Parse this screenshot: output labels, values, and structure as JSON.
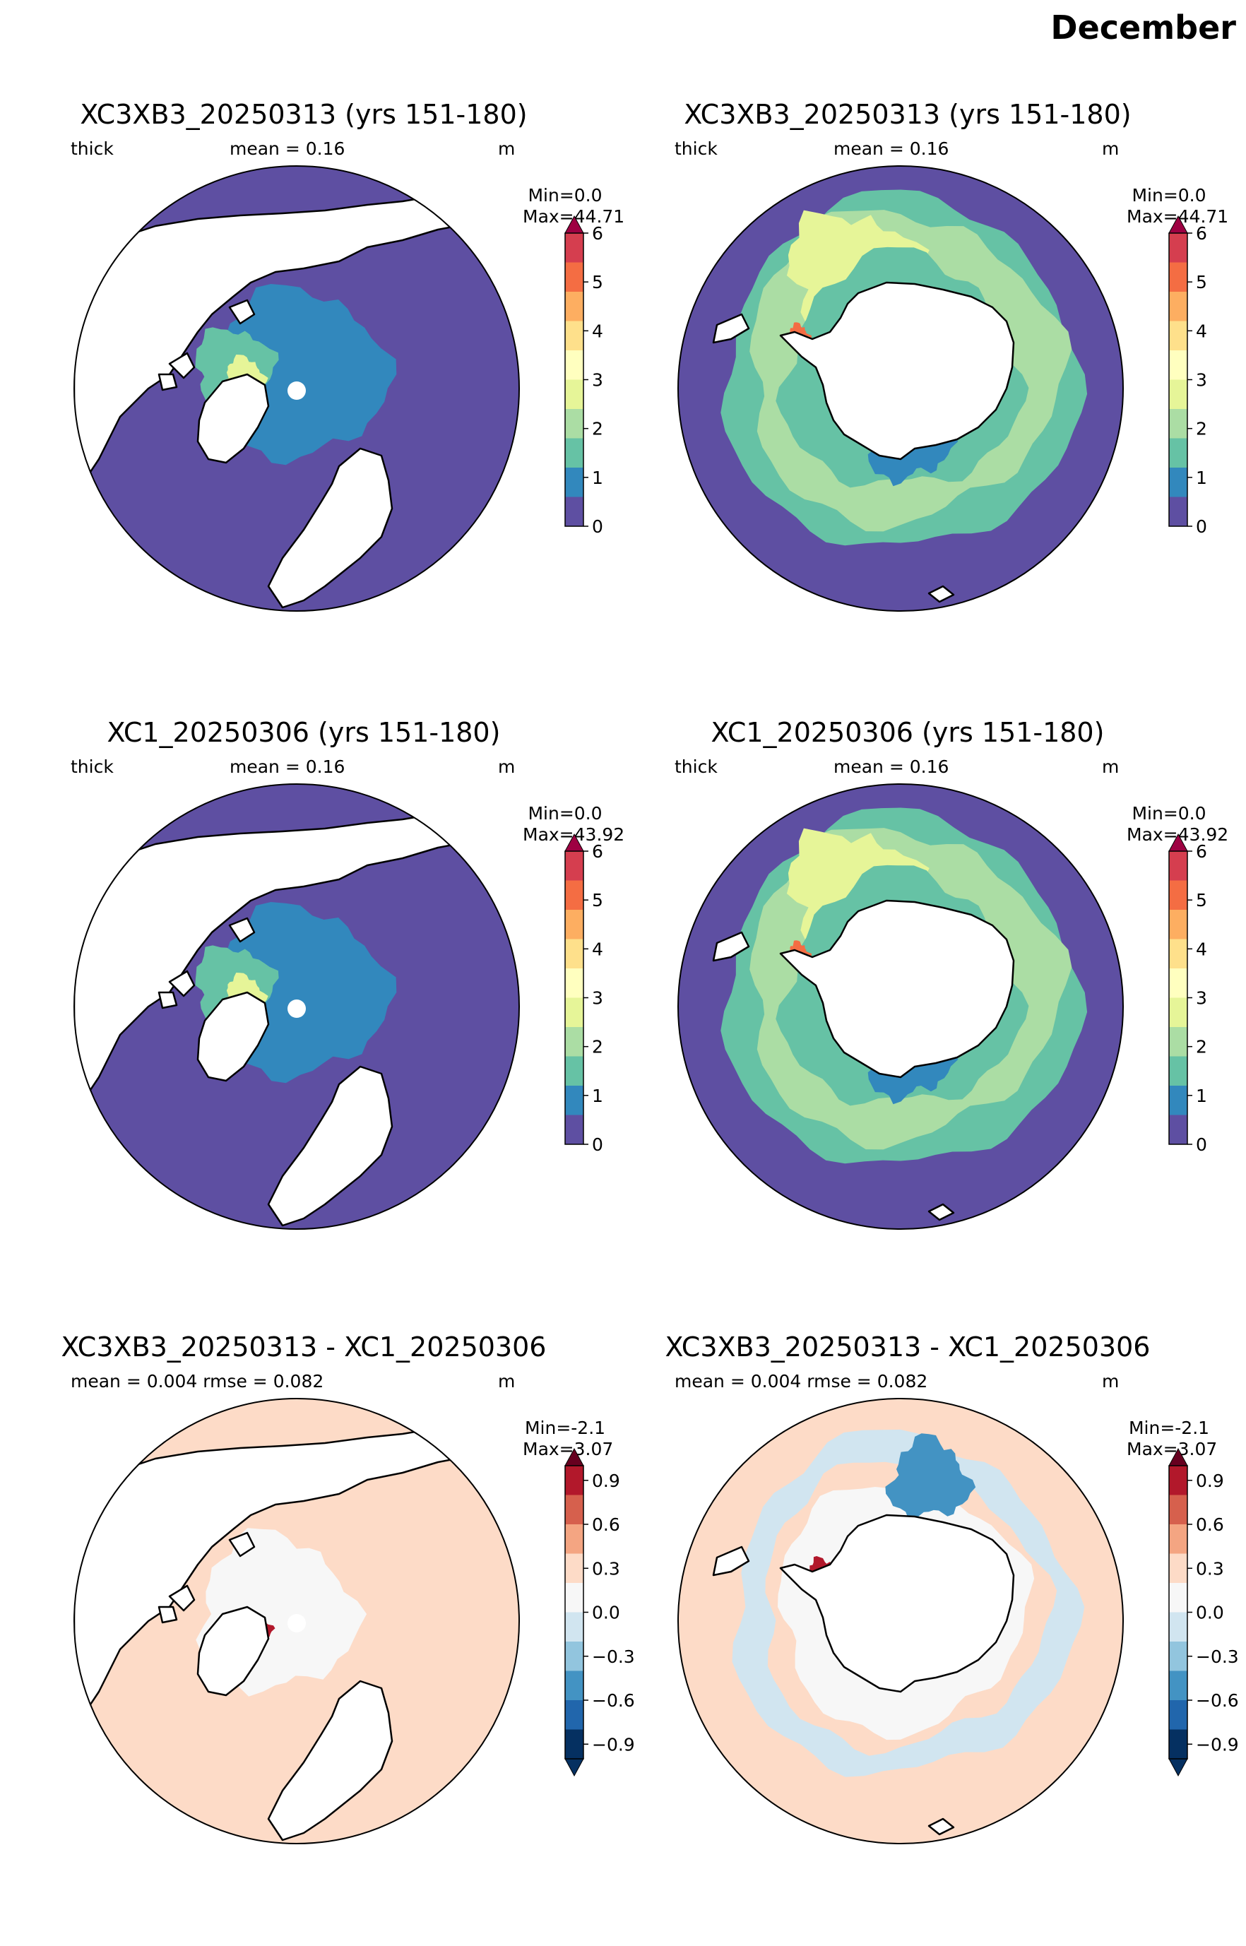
{
  "figure_title": "December",
  "colors": {
    "thick_scale": [
      "#5e4fa2",
      "#3288bd",
      "#66c2a5",
      "#abdda4",
      "#e6f598",
      "#ffffbf",
      "#fee08b",
      "#fdae61",
      "#f46d43",
      "#d53e4f",
      "#9e0142"
    ],
    "diff_scale": [
      "#053061",
      "#2166ac",
      "#4393c3",
      "#92c5de",
      "#d1e5f0",
      "#f7f7f7",
      "#fddbc7",
      "#f4a582",
      "#d6604d",
      "#b2182b",
      "#67001f"
    ],
    "land": "#ffffff",
    "coast": "#000000"
  },
  "panels": [
    {
      "id": "p1",
      "title": "XC3XB3_20250313 (yrs 151-180)",
      "variable": "thick",
      "mean_text": "mean = 0.16",
      "unit": "m",
      "min_text": "Min=0.0",
      "max_text": "Max=44.71",
      "hemisphere": "north",
      "scale": "thick"
    },
    {
      "id": "p2",
      "title": "XC3XB3_20250313 (yrs 151-180)",
      "variable": "thick",
      "mean_text": "mean = 0.16",
      "unit": "m",
      "min_text": "Min=0.0",
      "max_text": "Max=44.71",
      "hemisphere": "south",
      "scale": "thick"
    },
    {
      "id": "p3",
      "title": "XC1_20250306 (yrs 151-180)",
      "variable": "thick",
      "mean_text": "mean = 0.16",
      "unit": "m",
      "min_text": "Min=0.0",
      "max_text": "Max=43.92",
      "hemisphere": "north",
      "scale": "thick"
    },
    {
      "id": "p4",
      "title": "XC1_20250306 (yrs 151-180)",
      "variable": "thick",
      "mean_text": "mean = 0.16",
      "unit": "m",
      "min_text": "Min=0.0",
      "max_text": "Max=43.92",
      "hemisphere": "south",
      "scale": "thick"
    },
    {
      "id": "p5",
      "title": "XC3XB3_20250313 - XC1_20250306",
      "stats_text": "mean = 0.004  rmse = 0.082",
      "unit": "m",
      "min_text": "Min=-2.1",
      "max_text": "Max=3.07",
      "hemisphere": "north",
      "scale": "diff"
    },
    {
      "id": "p6",
      "title": "XC3XB3_20250313 - XC1_20250306",
      "stats_text": "mean = 0.004  rmse = 0.082",
      "unit": "m",
      "min_text": "Min=-2.1",
      "max_text": "Max=3.07",
      "hemisphere": "south",
      "scale": "diff"
    }
  ],
  "chart_data": [
    {
      "type": "heatmap",
      "title": "XC3XB3_20250313 (yrs 151-180)",
      "projection": "north polar stereographic",
      "variable": "thick",
      "units": "m",
      "mean": 0.16,
      "min": 0.0,
      "max": 44.71,
      "colorbar": {
        "ticks": [
          0,
          1,
          2,
          3,
          4,
          5,
          6
        ],
        "tick_labels": [
          "0",
          "1",
          "2",
          "3",
          "4",
          "5",
          "6"
        ],
        "extend": "max"
      }
    },
    {
      "type": "heatmap",
      "title": "XC3XB3_20250313 (yrs 151-180)",
      "projection": "south polar stereographic",
      "variable": "thick",
      "units": "m",
      "mean": 0.16,
      "min": 0.0,
      "max": 44.71,
      "colorbar": {
        "ticks": [
          0,
          1,
          2,
          3,
          4,
          5,
          6
        ],
        "tick_labels": [
          "0",
          "1",
          "2",
          "3",
          "4",
          "5",
          "6"
        ],
        "extend": "max"
      }
    },
    {
      "type": "heatmap",
      "title": "XC1_20250306 (yrs 151-180)",
      "projection": "north polar stereographic",
      "variable": "thick",
      "units": "m",
      "mean": 0.16,
      "min": 0.0,
      "max": 43.92,
      "colorbar": {
        "ticks": [
          0,
          1,
          2,
          3,
          4,
          5,
          6
        ],
        "tick_labels": [
          "0",
          "1",
          "2",
          "3",
          "4",
          "5",
          "6"
        ],
        "extend": "max"
      }
    },
    {
      "type": "heatmap",
      "title": "XC1_20250306 (yrs 151-180)",
      "projection": "south polar stereographic",
      "variable": "thick",
      "units": "m",
      "mean": 0.16,
      "min": 0.0,
      "max": 43.92,
      "colorbar": {
        "ticks": [
          0,
          1,
          2,
          3,
          4,
          5,
          6
        ],
        "tick_labels": [
          "0",
          "1",
          "2",
          "3",
          "4",
          "5",
          "6"
        ],
        "extend": "max"
      }
    },
    {
      "type": "heatmap",
      "title": "XC3XB3_20250313 - XC1_20250306",
      "projection": "north polar stereographic",
      "units": "m",
      "mean": 0.004,
      "rmse": 0.082,
      "min": -2.1,
      "max": 3.07,
      "colorbar": {
        "ticks": [
          -0.9,
          -0.6,
          -0.3,
          0.0,
          0.3,
          0.6,
          0.9
        ],
        "tick_labels": [
          "−0.9",
          "−0.6",
          "−0.3",
          "0.0",
          "0.3",
          "0.6",
          "0.9"
        ],
        "extend": "both"
      }
    },
    {
      "type": "heatmap",
      "title": "XC3XB3_20250313 - XC1_20250306",
      "projection": "south polar stereographic",
      "units": "m",
      "mean": 0.004,
      "rmse": 0.082,
      "min": -2.1,
      "max": 3.07,
      "colorbar": {
        "ticks": [
          -0.9,
          -0.6,
          -0.3,
          0.0,
          0.3,
          0.6,
          0.9
        ],
        "tick_labels": [
          "−0.9",
          "−0.6",
          "−0.3",
          "0.0",
          "0.3",
          "0.6",
          "0.9"
        ],
        "extend": "both"
      }
    }
  ]
}
